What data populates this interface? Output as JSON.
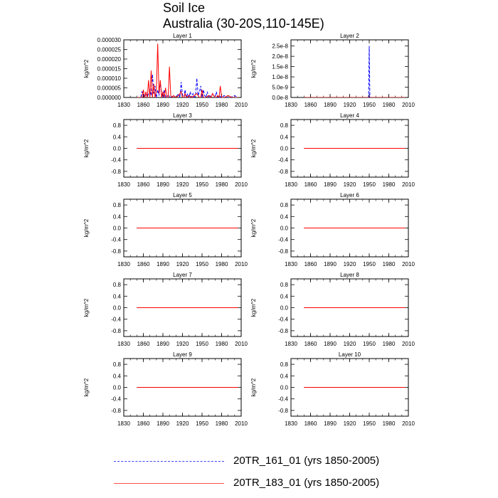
{
  "title": "Soil Ice",
  "subtitle": "Australia (30-20S,110-145E)",
  "legend": [
    {
      "label": "20TR_161_01 (yrs 1850-2005)",
      "color": "#0000ff",
      "style": "dashed"
    },
    {
      "label": "20TR_183_01 (yrs 1850-2005)",
      "color": "#ff0000",
      "style": "solid"
    }
  ],
  "chart_data": [
    {
      "type": "line",
      "title": "Layer 1",
      "ylabel": "kg/m^2",
      "xlim": [
        1830,
        2010
      ],
      "ylim": [
        0,
        3e-05
      ],
      "xticks": [
        "1830",
        "1860",
        "1890",
        "1920",
        "1950",
        "1980",
        "2010"
      ],
      "yticks": [
        {
          "v": 0,
          "label": "0.000000"
        },
        {
          "v": 5e-06,
          "label": "0.000005"
        },
        {
          "v": 1e-05,
          "label": "0.000010"
        },
        {
          "v": 1.5e-05,
          "label": "0.000015"
        },
        {
          "v": 2e-05,
          "label": "0.000020"
        },
        {
          "v": 2.5e-05,
          "label": "0.000025"
        },
        {
          "v": 3e-05,
          "label": "0.000030"
        }
      ],
      "series": [
        {
          "name": "20TR_161_01 (yrs 1850-2005)",
          "color": "#0000ff",
          "dashed": true,
          "x": [
            1850,
            1856,
            1858,
            1862,
            1864,
            1866,
            1870,
            1872,
            1874,
            1876,
            1878,
            1880,
            1882,
            1884,
            1886,
            1888,
            1890,
            1892,
            1894,
            1898,
            1902,
            1906,
            1910,
            1914,
            1916,
            1918,
            1920,
            1922,
            1924,
            1926,
            1928,
            1930,
            1932,
            1934,
            1936,
            1938,
            1940,
            1942,
            1944,
            1946,
            1948,
            1950,
            1952,
            1954,
            1956,
            1958,
            1960,
            1962,
            1964,
            1966,
            1968,
            1970,
            1972,
            1974,
            1976,
            1980,
            1984,
            1988,
            1994,
            2000,
            2005
          ],
          "y": [
            0,
            0,
            3e-06,
            0,
            2e-06,
            0,
            4e-06,
            1e-06,
            1.2e-05,
            2e-06,
            6e-06,
            0,
            4e-06,
            1e-06,
            8e-06,
            2e-06,
            0,
            4e-06,
            0,
            1e-06,
            0,
            1e-06,
            0,
            2e-06,
            0,
            8e-06,
            1e-06,
            0,
            4e-06,
            0,
            2e-06,
            0,
            3e-06,
            0,
            2e-06,
            0,
            1e-06,
            1e-05,
            1e-06,
            3e-06,
            6e-06,
            0,
            4e-06,
            1e-06,
            0,
            3e-06,
            0,
            1e-06,
            0,
            2e-06,
            1e-06,
            0,
            3e-06,
            0,
            1e-06,
            0,
            1e-06,
            0,
            0,
            1e-06,
            0
          ]
        },
        {
          "name": "20TR_183_01 (yrs 1850-2005)",
          "color": "#ff0000",
          "dashed": false,
          "x": [
            1850,
            1858,
            1860,
            1862,
            1864,
            1866,
            1868,
            1870,
            1872,
            1874,
            1876,
            1878,
            1880,
            1882,
            1884,
            1886,
            1888,
            1890,
            1892,
            1894,
            1896,
            1898,
            1900,
            1902,
            1904,
            1906,
            1910,
            1914,
            1918,
            1920,
            1922,
            1924,
            1926,
            1930,
            1934,
            1938,
            1942,
            1946,
            1948,
            1950,
            1952,
            1956,
            1960,
            1964,
            1966,
            1968,
            1970,
            1972,
            1974,
            1976,
            1978,
            1980,
            1984,
            1990,
            1996,
            2005
          ],
          "y": [
            0,
            0,
            4e-06,
            0,
            3e-06,
            0,
            9e-06,
            0,
            1.4e-05,
            0,
            7e-06,
            0,
            4e-06,
            2.8e-05,
            2e-06,
            9e-06,
            0,
            3e-06,
            0,
            5e-06,
            0,
            0,
            1.6e-05,
            1e-06,
            0,
            1e-06,
            0,
            1e-06,
            3e-06,
            0,
            0,
            2e-06,
            0,
            1e-06,
            0,
            1e-06,
            2e-06,
            0,
            0,
            4e-06,
            0,
            0,
            1e-06,
            0,
            2e-06,
            1e-06,
            0,
            0,
            1e-06,
            0,
            6e-06,
            0,
            0,
            1e-06,
            0,
            0
          ]
        }
      ]
    },
    {
      "type": "line",
      "title": "Layer 2",
      "ylabel": "kg/m^2",
      "xlim": [
        1830,
        2010
      ],
      "ylim": [
        0,
        2.8e-08
      ],
      "xticks": [
        "1830",
        "1860",
        "1890",
        "1920",
        "1950",
        "1980",
        "2010"
      ],
      "yticks": [
        {
          "v": 0,
          "label": "0.0e-8"
        },
        {
          "v": 5e-09,
          "label": "5.0e-9"
        },
        {
          "v": 1e-08,
          "label": "1.0e-8"
        },
        {
          "v": 1.5e-08,
          "label": "1.5e-8"
        },
        {
          "v": 2e-08,
          "label": "2.0e-8"
        },
        {
          "v": 2.5e-08,
          "label": "2.5e-8"
        }
      ],
      "series": [
        {
          "name": "20TR_161_01 (yrs 1850-2005)",
          "color": "#0000ff",
          "dashed": true,
          "x": [
            1850,
            1948,
            1949,
            1950,
            1951,
            1952,
            2005
          ],
          "y": [
            0,
            0,
            0,
            2.5e-08,
            0,
            0,
            0
          ]
        },
        {
          "name": "20TR_183_01 (yrs 1850-2005)",
          "color": "#ff0000",
          "dashed": false,
          "x": [
            1850,
            2005
          ],
          "y": [
            0,
            0
          ]
        }
      ]
    },
    {
      "type": "line",
      "title": "Layer 3",
      "ylabel": "kg/m^2",
      "xlim": [
        1830,
        2010
      ],
      "ylim": [
        -1,
        1
      ],
      "xticks": [
        "1830",
        "1860",
        "1890",
        "1920",
        "1950",
        "1980",
        "2010"
      ],
      "yticks": [
        {
          "v": 0.8,
          "label": "0.8"
        },
        {
          "v": 0.4,
          "label": "0.4"
        },
        {
          "v": 0,
          "label": "0.0"
        },
        {
          "v": -0.4,
          "label": "-0.4"
        },
        {
          "v": -0.8,
          "label": "-0.8"
        }
      ],
      "series": [
        {
          "name": "20TR_161_01 (yrs 1850-2005)",
          "color": "#0000ff",
          "dashed": true,
          "x": [
            1850,
            2005
          ],
          "y": [
            0,
            0
          ]
        },
        {
          "name": "20TR_183_01 (yrs 1850-2005)",
          "color": "#ff0000",
          "dashed": false,
          "x": [
            1850,
            2005
          ],
          "y": [
            0,
            0
          ]
        }
      ]
    },
    {
      "type": "line",
      "title": "Layer 4",
      "ylabel": "kg/m^2",
      "xlim": [
        1830,
        2010
      ],
      "ylim": [
        -1,
        1
      ],
      "xticks": [
        "1830",
        "1860",
        "1890",
        "1920",
        "1950",
        "1980",
        "2010"
      ],
      "yticks": [
        {
          "v": 0.8,
          "label": "0.8"
        },
        {
          "v": 0.4,
          "label": "0.4"
        },
        {
          "v": 0,
          "label": "0.0"
        },
        {
          "v": -0.4,
          "label": "-0.4"
        },
        {
          "v": -0.8,
          "label": "-0.8"
        }
      ],
      "series": [
        {
          "name": "20TR_161_01 (yrs 1850-2005)",
          "color": "#0000ff",
          "dashed": true,
          "x": [
            1850,
            2005
          ],
          "y": [
            0,
            0
          ]
        },
        {
          "name": "20TR_183_01 (yrs 1850-2005)",
          "color": "#ff0000",
          "dashed": false,
          "x": [
            1850,
            2005
          ],
          "y": [
            0,
            0
          ]
        }
      ]
    },
    {
      "type": "line",
      "title": "Layer 5",
      "ylabel": "kg/m^2",
      "xlim": [
        1830,
        2010
      ],
      "ylim": [
        -1,
        1
      ],
      "xticks": [
        "1830",
        "1860",
        "1890",
        "1920",
        "1950",
        "1980",
        "2010"
      ],
      "yticks": [
        {
          "v": 0.8,
          "label": "0.8"
        },
        {
          "v": 0.4,
          "label": "0.4"
        },
        {
          "v": 0,
          "label": "0.0"
        },
        {
          "v": -0.4,
          "label": "-0.4"
        },
        {
          "v": -0.8,
          "label": "-0.8"
        }
      ],
      "series": [
        {
          "name": "20TR_161_01 (yrs 1850-2005)",
          "color": "#0000ff",
          "dashed": true,
          "x": [
            1850,
            2005
          ],
          "y": [
            0,
            0
          ]
        },
        {
          "name": "20TR_183_01 (yrs 1850-2005)",
          "color": "#ff0000",
          "dashed": false,
          "x": [
            1850,
            2005
          ],
          "y": [
            0,
            0
          ]
        }
      ]
    },
    {
      "type": "line",
      "title": "Layer 6",
      "ylabel": "kg/m^2",
      "xlim": [
        1830,
        2010
      ],
      "ylim": [
        -1,
        1
      ],
      "xticks": [
        "1830",
        "1860",
        "1890",
        "1920",
        "1950",
        "1980",
        "2010"
      ],
      "yticks": [
        {
          "v": 0.8,
          "label": "0.8"
        },
        {
          "v": 0.4,
          "label": "0.4"
        },
        {
          "v": 0,
          "label": "0.0"
        },
        {
          "v": -0.4,
          "label": "-0.4"
        },
        {
          "v": -0.8,
          "label": "-0.8"
        }
      ],
      "series": [
        {
          "name": "20TR_161_01 (yrs 1850-2005)",
          "color": "#0000ff",
          "dashed": true,
          "x": [
            1850,
            2005
          ],
          "y": [
            0,
            0
          ]
        },
        {
          "name": "20TR_183_01 (yrs 1850-2005)",
          "color": "#ff0000",
          "dashed": false,
          "x": [
            1850,
            2005
          ],
          "y": [
            0,
            0
          ]
        }
      ]
    },
    {
      "type": "line",
      "title": "Layer 7",
      "ylabel": "kg/m^2",
      "xlim": [
        1830,
        2010
      ],
      "ylim": [
        -1,
        1
      ],
      "xticks": [
        "1830",
        "1860",
        "1890",
        "1920",
        "1950",
        "1980",
        "2010"
      ],
      "yticks": [
        {
          "v": 0.8,
          "label": "0.8"
        },
        {
          "v": 0.4,
          "label": "0.4"
        },
        {
          "v": 0,
          "label": "0.0"
        },
        {
          "v": -0.4,
          "label": "-0.4"
        },
        {
          "v": -0.8,
          "label": "-0.8"
        }
      ],
      "series": [
        {
          "name": "20TR_161_01 (yrs 1850-2005)",
          "color": "#0000ff",
          "dashed": true,
          "x": [
            1850,
            2005
          ],
          "y": [
            0,
            0
          ]
        },
        {
          "name": "20TR_183_01 (yrs 1850-2005)",
          "color": "#ff0000",
          "dashed": false,
          "x": [
            1850,
            2005
          ],
          "y": [
            0,
            0
          ]
        }
      ]
    },
    {
      "type": "line",
      "title": "Layer 8",
      "ylabel": "kg/m^2",
      "xlim": [
        1830,
        2010
      ],
      "ylim": [
        -1,
        1
      ],
      "xticks": [
        "1830",
        "1860",
        "1890",
        "1920",
        "1950",
        "1980",
        "2010"
      ],
      "yticks": [
        {
          "v": 0.8,
          "label": "0.8"
        },
        {
          "v": 0.4,
          "label": "0.4"
        },
        {
          "v": 0,
          "label": "0.0"
        },
        {
          "v": -0.4,
          "label": "-0.4"
        },
        {
          "v": -0.8,
          "label": "-0.8"
        }
      ],
      "series": [
        {
          "name": "20TR_161_01 (yrs 1850-2005)",
          "color": "#0000ff",
          "dashed": true,
          "x": [
            1850,
            2005
          ],
          "y": [
            0,
            0
          ]
        },
        {
          "name": "20TR_183_01 (yrs 1850-2005)",
          "color": "#ff0000",
          "dashed": false,
          "x": [
            1850,
            2005
          ],
          "y": [
            0,
            0
          ]
        }
      ]
    },
    {
      "type": "line",
      "title": "Layer 9",
      "ylabel": "kg/m^2",
      "xlim": [
        1830,
        2010
      ],
      "ylim": [
        -1,
        1
      ],
      "xticks": [
        "1830",
        "1860",
        "1890",
        "1920",
        "1950",
        "1980",
        "2010"
      ],
      "yticks": [
        {
          "v": 0.8,
          "label": "0.8"
        },
        {
          "v": 0.4,
          "label": "0.4"
        },
        {
          "v": 0,
          "label": "0.0"
        },
        {
          "v": -0.4,
          "label": "-0.4"
        },
        {
          "v": -0.8,
          "label": "-0.8"
        }
      ],
      "series": [
        {
          "name": "20TR_161_01 (yrs 1850-2005)",
          "color": "#0000ff",
          "dashed": true,
          "x": [
            1850,
            2005
          ],
          "y": [
            0,
            0
          ]
        },
        {
          "name": "20TR_183_01 (yrs 1850-2005)",
          "color": "#ff0000",
          "dashed": false,
          "x": [
            1850,
            2005
          ],
          "y": [
            0,
            0
          ]
        }
      ]
    },
    {
      "type": "line",
      "title": "Layer 10",
      "ylabel": "kg/m^2",
      "xlim": [
        1830,
        2010
      ],
      "ylim": [
        -1,
        1
      ],
      "xticks": [
        "1830",
        "1860",
        "1890",
        "1920",
        "1950",
        "1980",
        "2010"
      ],
      "yticks": [
        {
          "v": 0.8,
          "label": "0.8"
        },
        {
          "v": 0.4,
          "label": "0.4"
        },
        {
          "v": 0,
          "label": "0.0"
        },
        {
          "v": -0.4,
          "label": "-0.4"
        },
        {
          "v": -0.8,
          "label": "-0.8"
        }
      ],
      "series": [
        {
          "name": "20TR_161_01 (yrs 1850-2005)",
          "color": "#0000ff",
          "dashed": true,
          "x": [
            1850,
            2005
          ],
          "y": [
            0,
            0
          ]
        },
        {
          "name": "20TR_183_01 (yrs 1850-2005)",
          "color": "#ff0000",
          "dashed": false,
          "x": [
            1850,
            2005
          ],
          "y": [
            0,
            0
          ]
        }
      ]
    }
  ]
}
